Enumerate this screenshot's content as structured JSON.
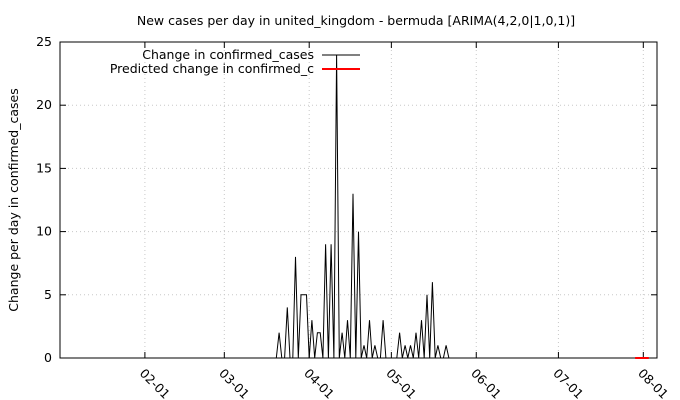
{
  "chart_data": {
    "type": "line",
    "title": "New cases per day in united_kingdom - bermuda [ARIMA(4,2,0|1,0,1)]",
    "xlabel": "",
    "ylabel": "Change per day in confirmed_cases",
    "ylim": [
      0,
      25
    ],
    "y_ticks": [
      "0",
      "5",
      "10",
      "15",
      "20",
      "25"
    ],
    "x_ticks": [
      {
        "label": "02-01",
        "day": 31
      },
      {
        "label": "03-01",
        "day": 60
      },
      {
        "label": "04-01",
        "day": 91
      },
      {
        "label": "05-01",
        "day": 121
      },
      {
        "label": "06-01",
        "day": 152
      },
      {
        "label": "07-01",
        "day": 182
      },
      {
        "label": "08-01",
        "day": 213
      }
    ],
    "xlim": [
      0,
      218
    ],
    "grid": true,
    "legend_position": "top-left",
    "series": [
      {
        "name": "Change in confirmed_cases",
        "color": "#000000",
        "x": [
          0,
          79,
          80,
          81,
          82,
          83,
          84,
          85,
          86,
          87,
          88,
          89,
          90,
          91,
          92,
          93,
          94,
          95,
          96,
          97,
          98,
          99,
          100,
          101,
          102,
          103,
          104,
          105,
          106,
          107,
          108,
          109,
          110,
          111,
          112,
          113,
          114,
          115,
          116,
          117,
          118,
          119,
          120,
          121,
          122,
          123,
          124,
          125,
          126,
          127,
          128,
          129,
          130,
          131,
          132,
          133,
          134,
          135,
          136,
          137,
          138,
          139,
          140,
          141,
          142,
          143,
          144,
          145,
          146,
          147,
          148,
          149,
          150,
          151,
          152,
          153,
          154,
          155,
          156,
          157,
          158,
          159,
          160,
          161,
          162,
          163,
          164,
          165,
          166,
          167,
          168,
          169,
          170,
          171,
          172,
          173,
          174,
          175,
          176,
          177,
          178,
          179,
          180,
          181,
          182,
          183,
          184,
          185,
          186,
          187,
          188,
          189,
          190,
          191,
          192,
          193,
          194,
          195,
          196,
          197,
          198,
          199,
          200,
          201,
          202,
          203,
          204,
          205,
          206,
          207,
          208
        ],
        "values": [
          0,
          0,
          2,
          0,
          0,
          4,
          0,
          0,
          8,
          0,
          5,
          5,
          5,
          0,
          3,
          0,
          2,
          2,
          0,
          9,
          0,
          9,
          0,
          24,
          0,
          2,
          0,
          3,
          0,
          13,
          0,
          10,
          0,
          1,
          0,
          3,
          0,
          1,
          0,
          0,
          3,
          0,
          0,
          0,
          0,
          0,
          2,
          0,
          1,
          0,
          1,
          0,
          2,
          0,
          3,
          0,
          5,
          0,
          6,
          0,
          1,
          0,
          0,
          1,
          0,
          0,
          0,
          0,
          0,
          0,
          0,
          0,
          0,
          0,
          0,
          0,
          0,
          0,
          0,
          0,
          0,
          0,
          0,
          0,
          0,
          0,
          0,
          0,
          0,
          0,
          0,
          0,
          0,
          0,
          0,
          0,
          0,
          0,
          0,
          0,
          0,
          0,
          0,
          0,
          0,
          0,
          0,
          0,
          0,
          0,
          0,
          0,
          0,
          0,
          0,
          0,
          0,
          0,
          0,
          0,
          0,
          0,
          0,
          0,
          0,
          0,
          0,
          0,
          0,
          0,
          0
        ]
      },
      {
        "name": "Predicted change in confirmed_c",
        "color": "#ff0000",
        "x": [
          210,
          211,
          212,
          213,
          214,
          215
        ],
        "values": [
          0,
          0,
          0,
          0,
          0,
          0
        ]
      }
    ]
  }
}
